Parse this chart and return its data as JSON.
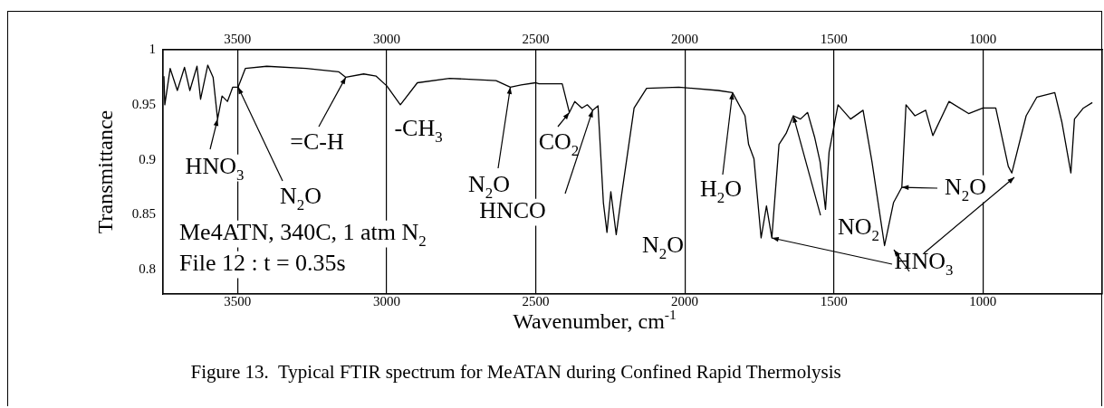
{
  "chart_data": {
    "type": "line",
    "xlabel": "Wavenumber, cm$^{-1}$",
    "ylabel": "Transmittance",
    "xlim": [
      3750,
      600
    ],
    "xticks": [
      3500,
      3000,
      2500,
      2000,
      1500,
      1000
    ],
    "x2lim": [
      3750,
      600
    ],
    "x2ticks": [
      3500,
      3000,
      2500,
      2000,
      1500,
      1000
    ],
    "ylim": [
      0.778,
      1
    ],
    "yticks": [
      {
        "value": 0.8,
        "label": "0.8"
      },
      0.85,
      {
        "value": 0.9,
        "label": "0.9"
      },
      0.95,
      1
    ],
    "grid": "x",
    "legend": false,
    "marker": "none",
    "line_style": "solid",
    "series": [
      {
        "color": "#000000",
        "x": [
          3747,
          3744,
          3726,
          3702,
          3678,
          3660,
          3636,
          3624,
          3600,
          3582,
          3567,
          3552,
          3534,
          3516,
          3498,
          3474,
          3402,
          3270,
          3161,
          3137,
          3077,
          3035,
          2999,
          2954,
          2897,
          2789,
          2633,
          2585,
          2549,
          2501,
          2489,
          2411,
          2387,
          2369,
          2345,
          2327,
          2309,
          2291,
          2273,
          2261,
          2248,
          2230,
          2212,
          2170,
          2128,
          2020,
          1888,
          1840,
          1798,
          1786,
          1768,
          1744,
          1726,
          1708,
          1684,
          1660,
          1636,
          1612,
          1588,
          1564,
          1546,
          1528,
          1516,
          1486,
          1444,
          1402,
          1372,
          1330,
          1300,
          1272,
          1258,
          1228,
          1192,
          1168,
          1114,
          1048,
          1000,
          957,
          915,
          903,
          855,
          819,
          759,
          735,
          705,
          693,
          663,
          633
        ],
        "values": [
          0.976,
          0.95,
          0.983,
          0.963,
          0.984,
          0.963,
          0.985,
          0.955,
          0.986,
          0.975,
          0.937,
          0.958,
          0.953,
          0.966,
          0.966,
          0.983,
          0.985,
          0.983,
          0.98,
          0.975,
          0.978,
          0.976,
          0.967,
          0.95,
          0.97,
          0.974,
          0.972,
          0.966,
          0.968,
          0.97,
          0.969,
          0.969,
          0.943,
          0.953,
          0.947,
          0.95,
          0.945,
          0.949,
          0.861,
          0.834,
          0.871,
          0.832,
          0.868,
          0.947,
          0.965,
          0.966,
          0.963,
          0.961,
          0.94,
          0.914,
          0.901,
          0.829,
          0.858,
          0.829,
          0.914,
          0.924,
          0.94,
          0.937,
          0.943,
          0.92,
          0.898,
          0.855,
          0.907,
          0.95,
          0.937,
          0.945,
          0.898,
          0.822,
          0.861,
          0.875,
          0.95,
          0.94,
          0.945,
          0.922,
          0.953,
          0.942,
          0.947,
          0.947,
          0.894,
          0.888,
          0.94,
          0.957,
          0.961,
          0.934,
          0.888,
          0.937,
          0.947,
          0.952
        ]
      }
    ],
    "annotations": [
      {
        "text": "HNO$_{3}$",
        "x": 3567,
        "y": 0.937
      },
      {
        "text": "N$_{2}$O",
        "x": 3498,
        "y": 0.966
      },
      {
        "text": "=C-H",
        "x": 3137,
        "y": 0.975
      },
      "-CH$_{3}$",
      {
        "text": "N$_{2}$O",
        "x": 2585,
        "y": 0.966
      },
      {
        "text": "CO$_{2}$",
        "x": 2387,
        "y": 0.943
      },
      {
        "text": "HNCO",
        "x": 2309,
        "y": 0.945
      },
      "N$_{2}$O",
      {
        "text": "H$_{2}$O",
        "x": 1840,
        "y": 0.961
      },
      {
        "text": "NO$_{2}$",
        "x": 1636,
        "y": 0.94
      },
      {
        "text": "N$_{2}$O",
        "x": 1272,
        "y": 0.875
      },
      {
        "text": "HNO$_{3}$",
        "x": 1708,
        "y": 0.829
      },
      "Me4ATN, 340C, 1 atm N$_{2}$",
      "File 12 : t = 0.35s",
      "Figure 13.  Typical FTIR spectrum for MeATAN during Confined Rapid Thermolysis"
    ]
  }
}
